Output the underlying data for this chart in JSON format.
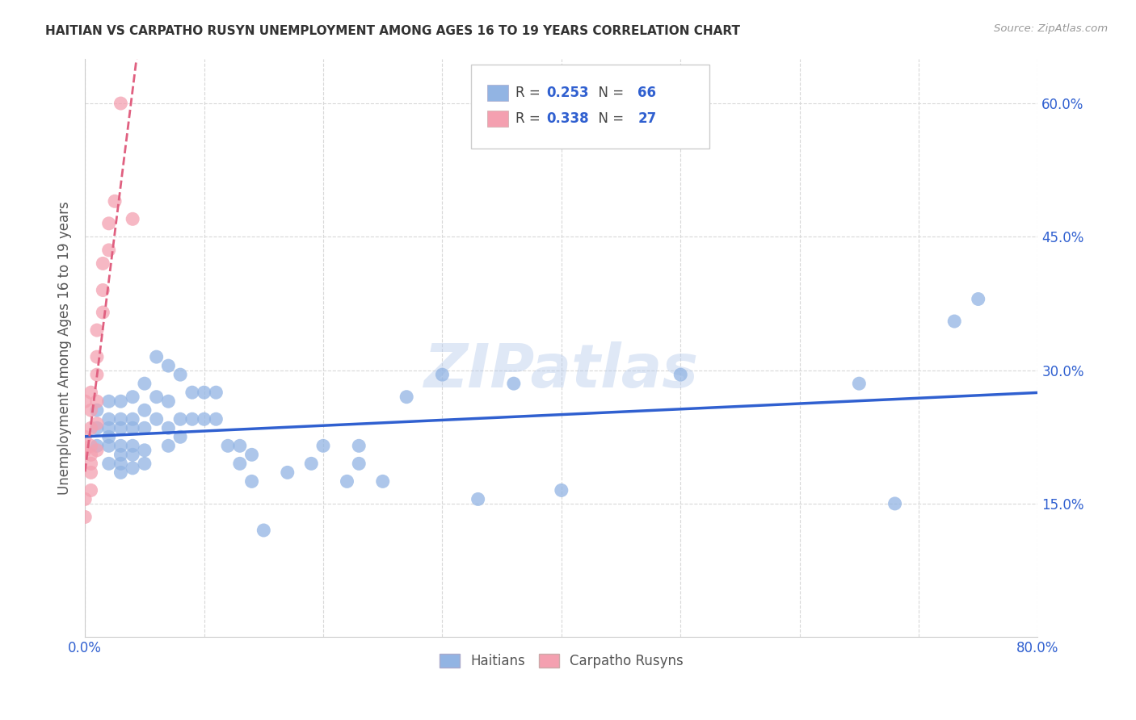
{
  "title": "HAITIAN VS CARPATHO RUSYN UNEMPLOYMENT AMONG AGES 16 TO 19 YEARS CORRELATION CHART",
  "source": "Source: ZipAtlas.com",
  "ylabel": "Unemployment Among Ages 16 to 19 years",
  "xlim": [
    0,
    0.8
  ],
  "ylim": [
    0,
    0.65
  ],
  "ytick_positions": [
    0.15,
    0.3,
    0.45,
    0.6
  ],
  "ytick_labels": [
    "15.0%",
    "30.0%",
    "45.0%",
    "60.0%"
  ],
  "haitian_color": "#92b4e3",
  "carpatho_color": "#f4a0b0",
  "haitian_line_color": "#3060d0",
  "carpatho_line_color": "#e06080",
  "R_haitian": 0.253,
  "N_haitian": 66,
  "R_carpatho": 0.338,
  "N_carpatho": 27,
  "legend_label_haitian": "Haitians",
  "legend_label_carpatho": "Carpatho Rusyns",
  "watermark": "ZIPatlas",
  "haitian_x": [
    0.01,
    0.01,
    0.01,
    0.02,
    0.02,
    0.02,
    0.02,
    0.02,
    0.02,
    0.03,
    0.03,
    0.03,
    0.03,
    0.03,
    0.03,
    0.03,
    0.04,
    0.04,
    0.04,
    0.04,
    0.04,
    0.04,
    0.05,
    0.05,
    0.05,
    0.05,
    0.05,
    0.06,
    0.06,
    0.06,
    0.07,
    0.07,
    0.07,
    0.07,
    0.08,
    0.08,
    0.08,
    0.09,
    0.09,
    0.1,
    0.1,
    0.11,
    0.11,
    0.12,
    0.13,
    0.13,
    0.14,
    0.14,
    0.15,
    0.17,
    0.19,
    0.2,
    0.22,
    0.23,
    0.23,
    0.25,
    0.27,
    0.3,
    0.33,
    0.36,
    0.4,
    0.5,
    0.65,
    0.68,
    0.73,
    0.75
  ],
  "haitian_y": [
    0.215,
    0.235,
    0.255,
    0.195,
    0.215,
    0.225,
    0.235,
    0.245,
    0.265,
    0.185,
    0.195,
    0.205,
    0.215,
    0.235,
    0.245,
    0.265,
    0.19,
    0.205,
    0.215,
    0.235,
    0.245,
    0.27,
    0.195,
    0.21,
    0.235,
    0.255,
    0.285,
    0.245,
    0.27,
    0.315,
    0.215,
    0.235,
    0.265,
    0.305,
    0.225,
    0.245,
    0.295,
    0.245,
    0.275,
    0.245,
    0.275,
    0.245,
    0.275,
    0.215,
    0.195,
    0.215,
    0.175,
    0.205,
    0.12,
    0.185,
    0.195,
    0.215,
    0.175,
    0.195,
    0.215,
    0.175,
    0.27,
    0.295,
    0.155,
    0.285,
    0.165,
    0.295,
    0.285,
    0.15,
    0.355,
    0.38
  ],
  "carpatho_x": [
    0.0,
    0.0,
    0.0,
    0.0,
    0.0,
    0.005,
    0.005,
    0.005,
    0.005,
    0.005,
    0.005,
    0.005,
    0.005,
    0.01,
    0.01,
    0.01,
    0.01,
    0.01,
    0.01,
    0.015,
    0.015,
    0.015,
    0.02,
    0.02,
    0.025,
    0.03,
    0.04
  ],
  "carpatho_y": [
    0.135,
    0.155,
    0.21,
    0.225,
    0.265,
    0.165,
    0.185,
    0.195,
    0.205,
    0.215,
    0.235,
    0.255,
    0.275,
    0.21,
    0.24,
    0.265,
    0.295,
    0.315,
    0.345,
    0.365,
    0.39,
    0.42,
    0.435,
    0.465,
    0.49,
    0.6,
    0.47
  ],
  "background_color": "#ffffff",
  "grid_color": "#d8d8d8"
}
